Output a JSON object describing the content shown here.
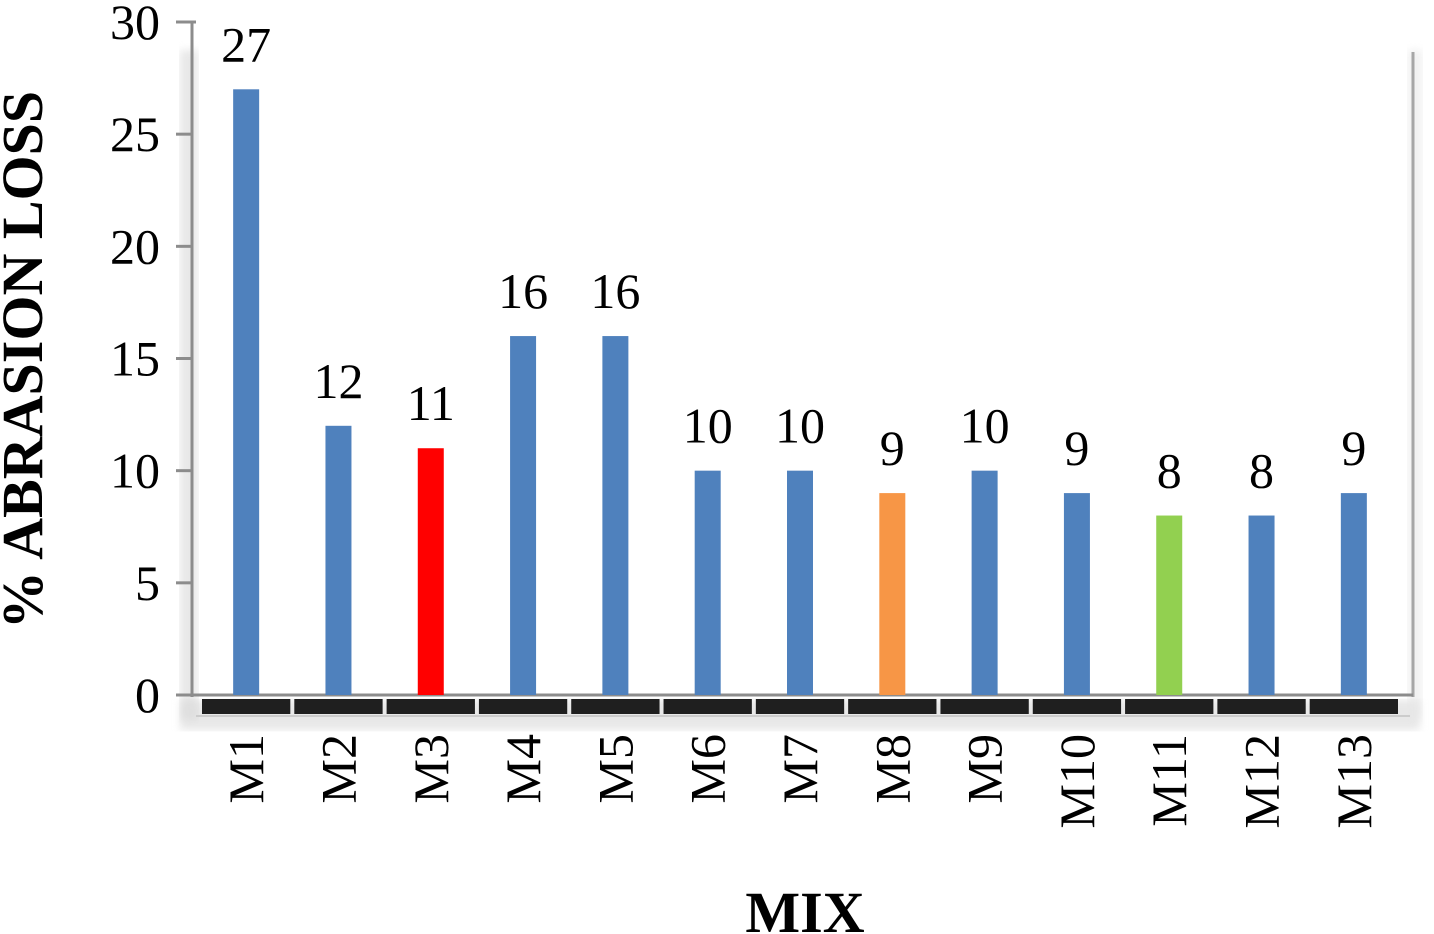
{
  "chart_data": {
    "type": "bar",
    "title": "",
    "xlabel": "MIX",
    "ylabel": "% ABRASION LOSS",
    "ylim": [
      0,
      30
    ],
    "yticks": [
      0,
      5,
      10,
      15,
      20,
      25,
      30
    ],
    "categories": [
      "M1",
      "M2",
      "M3",
      "M4",
      "M5",
      "M6",
      "M7",
      "M8",
      "M9",
      "M10",
      "M11",
      "M12",
      "M13"
    ],
    "values": [
      27,
      12,
      11,
      16,
      16,
      10,
      10,
      9,
      10,
      9,
      8,
      8,
      9
    ],
    "bar_colors": [
      "#4f81bd",
      "#4f81bd",
      "#ff0000",
      "#4f81bd",
      "#4f81bd",
      "#4f81bd",
      "#4f81bd",
      "#f79646",
      "#4f81bd",
      "#4f81bd",
      "#92d050",
      "#4f81bd",
      "#4f81bd"
    ],
    "data_labels": true,
    "grid": false,
    "legend": "none"
  }
}
